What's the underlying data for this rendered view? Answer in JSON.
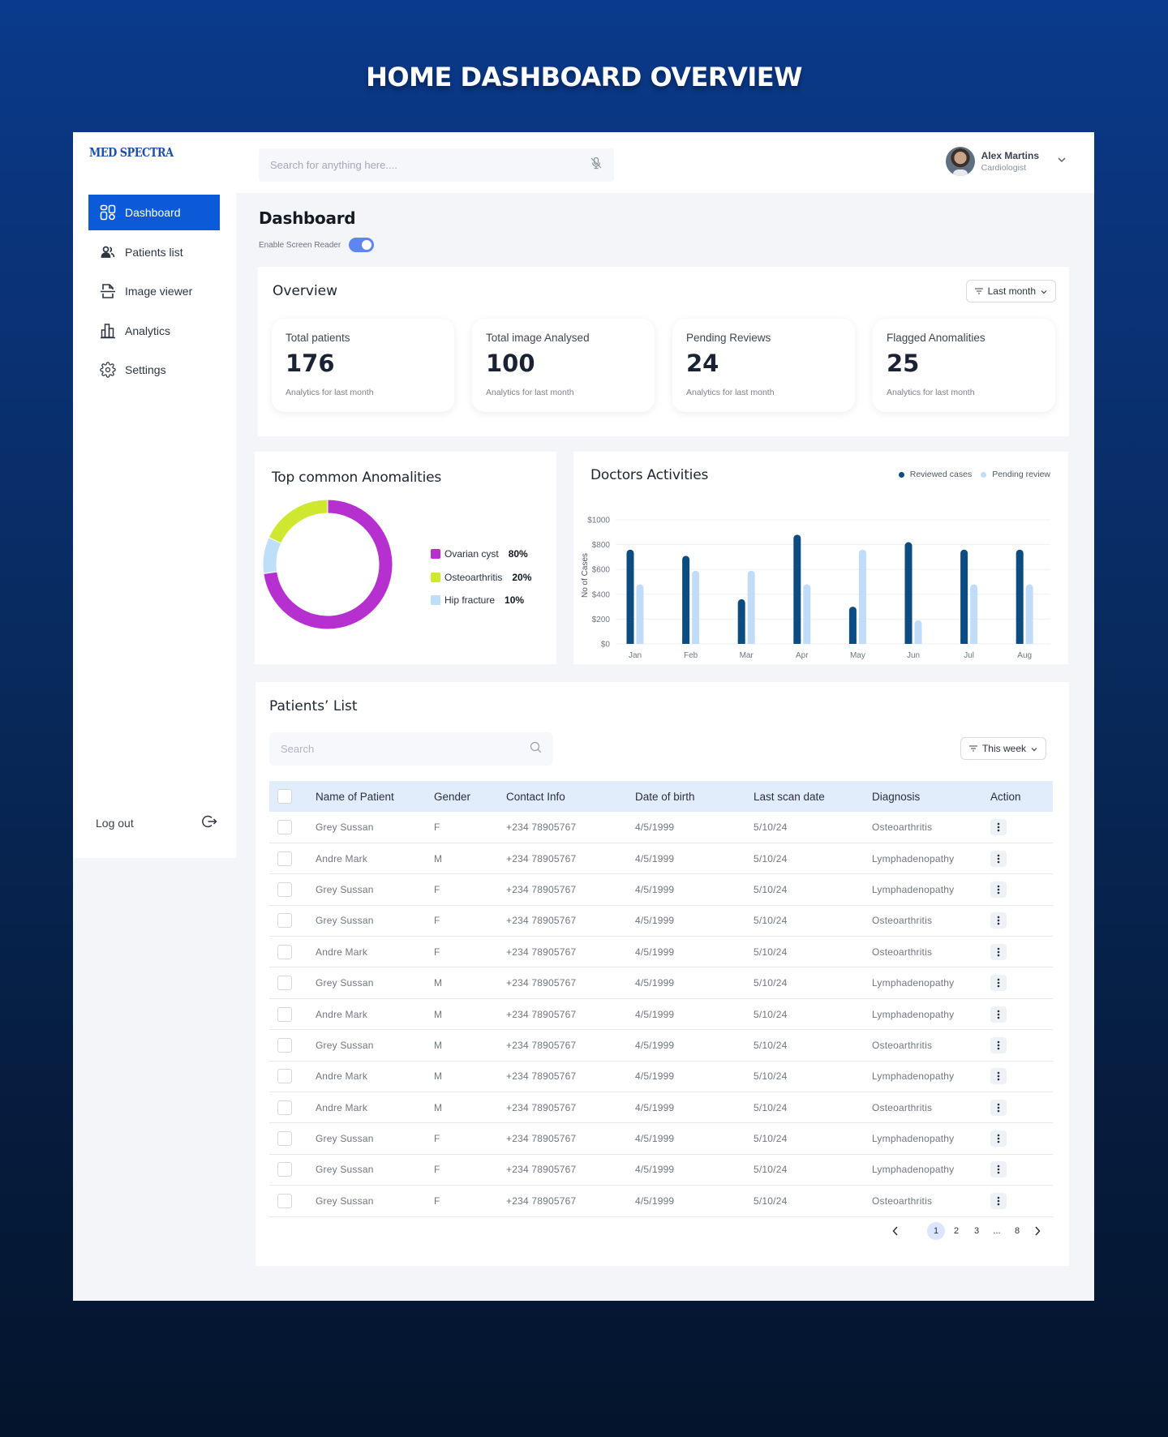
{
  "hero": {
    "title": "HOME DASHBOARD OVERVIEW"
  },
  "brand": {
    "logo": "MED SPECTRA",
    "accent_color": "#0b5ad8"
  },
  "sidebar": {
    "items": [
      {
        "label": "Dashboard",
        "icon": "dashboard-grid-icon",
        "active": true
      },
      {
        "label": "Patients list",
        "icon": "users-icon",
        "active": false
      },
      {
        "label": "Image viewer",
        "icon": "scan-document-icon",
        "active": false
      },
      {
        "label": "Analytics",
        "icon": "bar-chart-icon",
        "active": false
      },
      {
        "label": "Settings",
        "icon": "gear-icon",
        "active": false
      }
    ],
    "logout_label": "Log out"
  },
  "topbar": {
    "search_placeholder": "Search for anything here....",
    "mic_icon": "mic-off-icon",
    "user": {
      "name": "Alex Martins",
      "role": "Cardiologist"
    }
  },
  "page": {
    "title": "Dashboard",
    "screen_reader_label": "Enable Screen Reader",
    "screen_reader_enabled": true
  },
  "overview": {
    "title": "Overview",
    "filter_label": "Last month",
    "stats": [
      {
        "label": "Total patients",
        "value": "176",
        "sub": "Analytics for last month"
      },
      {
        "label": "Total image Analysed",
        "value": "100",
        "sub": "Analytics for last month"
      },
      {
        "label": "Pending Reviews",
        "value": "24",
        "sub": "Analytics for last month"
      },
      {
        "label": "Flagged Anomalities",
        "value": "25",
        "sub": "Analytics for last month"
      }
    ]
  },
  "chart_data": [
    {
      "type": "pie",
      "title": "Top common Anomalities",
      "donut": true,
      "slices": [
        {
          "label": "Ovarian cyst",
          "value": 80,
          "display": "80%",
          "color": "#b62fcf"
        },
        {
          "label": "Osteoarthritis",
          "value": 20,
          "display": "20%",
          "color": "#cfe72e"
        },
        {
          "label": "Hip fracture",
          "value": 10,
          "display": "10%",
          "color": "#bde0f8"
        }
      ],
      "legend": "right"
    },
    {
      "type": "bar",
      "title": "Doctors Activities",
      "categories": [
        "Jan",
        "Feb",
        "Mar",
        "Apr",
        "May",
        "Jun",
        "Jul",
        "Aug"
      ],
      "series": [
        {
          "name": "Reviewed cases",
          "color": "#0d4c80",
          "values": [
            760,
            710,
            360,
            880,
            300,
            820,
            760,
            760
          ]
        },
        {
          "name": "Pending review",
          "color": "#c1dcf8",
          "values": [
            480,
            590,
            590,
            480,
            760,
            190,
            480,
            480
          ]
        }
      ],
      "ylabel": "No of Cases",
      "xlabel": "",
      "ylim": [
        0,
        1000
      ],
      "yticks": [
        "$0",
        "$200",
        "$400",
        "$600",
        "$800",
        "$1000"
      ],
      "ytick_values": [
        0,
        200,
        400,
        600,
        800,
        1000
      ],
      "grid": true,
      "legend": "top-right"
    }
  ],
  "patients": {
    "title": "Patients’ List",
    "search_placeholder": "Search",
    "filter_label": "This week",
    "columns": [
      "Name of Patient",
      "Gender",
      "Contact Info",
      "Date of birth",
      "Last scan date",
      "Diagnosis",
      "Action"
    ],
    "rows": [
      {
        "name": "Grey Sussan",
        "gender": "F",
        "contact": "+234 78905767",
        "dob": "4/5/1999",
        "last_scan": "5/10/24",
        "diagnosis": "Osteoarthritis"
      },
      {
        "name": "Andre Mark",
        "gender": "M",
        "contact": "+234 78905767",
        "dob": "4/5/1999",
        "last_scan": "5/10/24",
        "diagnosis": "Lymphadenopathy"
      },
      {
        "name": "Grey Sussan",
        "gender": "F",
        "contact": "+234 78905767",
        "dob": "4/5/1999",
        "last_scan": "5/10/24",
        "diagnosis": "Lymphadenopathy"
      },
      {
        "name": "Grey Sussan",
        "gender": "F",
        "contact": "+234 78905767",
        "dob": "4/5/1999",
        "last_scan": "5/10/24",
        "diagnosis": "Osteoarthritis"
      },
      {
        "name": "Andre Mark",
        "gender": "F",
        "contact": "+234 78905767",
        "dob": "4/5/1999",
        "last_scan": "5/10/24",
        "diagnosis": "Osteoarthritis"
      },
      {
        "name": "Grey Sussan",
        "gender": "M",
        "contact": "+234 78905767",
        "dob": "4/5/1999",
        "last_scan": "5/10/24",
        "diagnosis": "Lymphadenopathy"
      },
      {
        "name": "Andre Mark",
        "gender": "M",
        "contact": "+234 78905767",
        "dob": "4/5/1999",
        "last_scan": "5/10/24",
        "diagnosis": "Lymphadenopathy"
      },
      {
        "name": "Grey Sussan",
        "gender": "M",
        "contact": "+234 78905767",
        "dob": "4/5/1999",
        "last_scan": "5/10/24",
        "diagnosis": "Osteoarthritis"
      },
      {
        "name": "Andre Mark",
        "gender": "M",
        "contact": "+234 78905767",
        "dob": "4/5/1999",
        "last_scan": "5/10/24",
        "diagnosis": "Lymphadenopathy"
      },
      {
        "name": "Andre Mark",
        "gender": "M",
        "contact": "+234 78905767",
        "dob": "4/5/1999",
        "last_scan": "5/10/24",
        "diagnosis": "Osteoarthritis"
      },
      {
        "name": "Grey Sussan",
        "gender": "F",
        "contact": "+234 78905767",
        "dob": "4/5/1999",
        "last_scan": "5/10/24",
        "diagnosis": "Lymphadenopathy"
      },
      {
        "name": "Grey Sussan",
        "gender": "F",
        "contact": "+234 78905767",
        "dob": "4/5/1999",
        "last_scan": "5/10/24",
        "diagnosis": "Lymphadenopathy"
      },
      {
        "name": "Grey Sussan",
        "gender": "F",
        "contact": "+234 78905767",
        "dob": "4/5/1999",
        "last_scan": "5/10/24",
        "diagnosis": "Osteoarthritis"
      }
    ],
    "pagination": {
      "pages": [
        "1",
        "2",
        "3",
        "...",
        "8"
      ],
      "current": "1"
    }
  }
}
